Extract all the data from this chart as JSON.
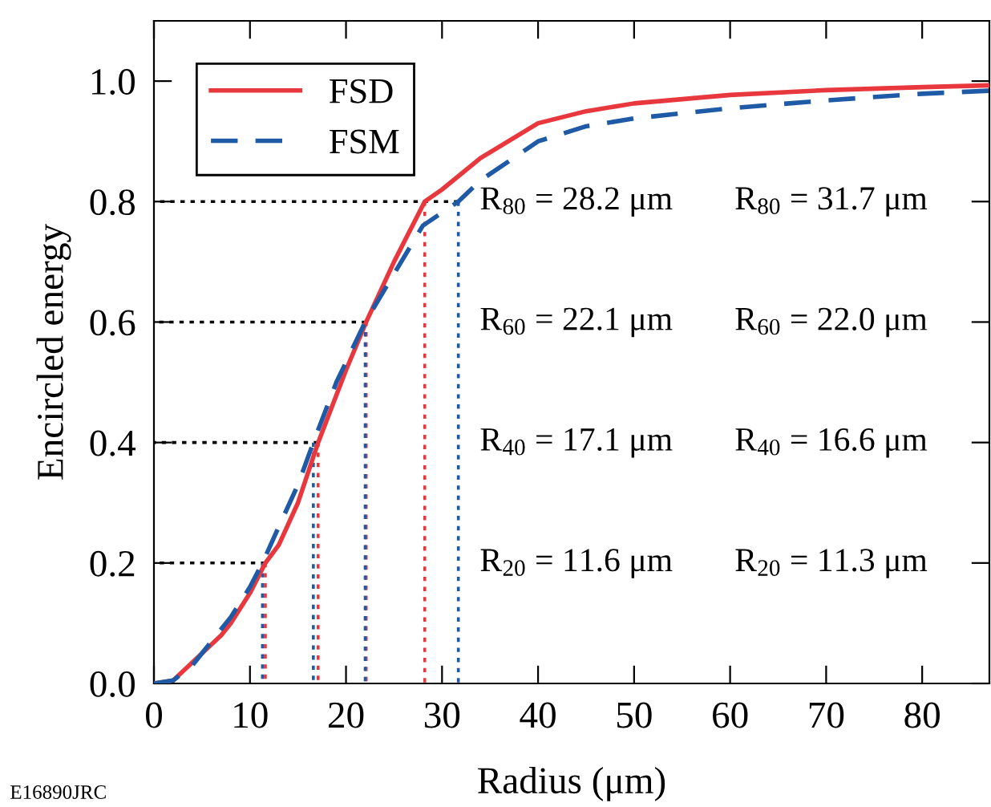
{
  "chart_data": {
    "type": "line",
    "xlabel": "Radius (μm)",
    "ylabel": "Encircled energy",
    "xlim": [
      0,
      87
    ],
    "ylim": [
      0,
      1.1
    ],
    "xticks": [
      0,
      10,
      20,
      30,
      40,
      50,
      60,
      70,
      80
    ],
    "yticks": [
      {
        "value": 0,
        "label": "0.0"
      },
      {
        "value": 0.2,
        "label": "0.2"
      },
      {
        "value": 0.4,
        "label": "0.4"
      },
      {
        "value": 0.6,
        "label": "0.6"
      },
      {
        "value": 0.8,
        "label": "0.8"
      },
      {
        "value": 1.0,
        "label": "1.0"
      }
    ],
    "grid": false,
    "legend": "top left",
    "series": [
      {
        "name": "FSD",
        "color": "#e8383d",
        "line_style": "solid",
        "x": [
          0,
          2,
          3,
          5,
          7,
          8,
          10,
          11.6,
          13,
          15,
          17.1,
          20,
          22.1,
          25,
          28.2,
          30,
          34,
          40,
          45,
          50,
          60,
          70,
          80,
          87
        ],
        "values": [
          0,
          0.005,
          0.02,
          0.05,
          0.08,
          0.1,
          0.15,
          0.2,
          0.23,
          0.3,
          0.4,
          0.52,
          0.6,
          0.7,
          0.8,
          0.82,
          0.872,
          0.93,
          0.95,
          0.963,
          0.977,
          0.985,
          0.99,
          0.993
        ]
      },
      {
        "name": "FSM",
        "color": "#1f5aa6",
        "line_style": "dashed",
        "x": [
          0,
          2,
          4,
          6,
          8,
          10,
          11.3,
          13,
          15,
          16.6,
          19,
          22,
          25,
          28,
          31.7,
          34,
          40,
          45,
          50,
          60,
          70,
          80,
          87
        ],
        "values": [
          0,
          0.005,
          0.03,
          0.07,
          0.11,
          0.16,
          0.2,
          0.26,
          0.33,
          0.4,
          0.5,
          0.6,
          0.68,
          0.76,
          0.8,
          0.835,
          0.9,
          0.925,
          0.938,
          0.955,
          0.968,
          0.979,
          0.984
        ]
      },
      {
        "color": "#000000",
        "line_style": "dotted",
        "x": [
          31.7,
          0
        ],
        "values": [
          0.8,
          0.8
        ]
      },
      {
        "color": "#000000",
        "line_style": "dotted",
        "x": [
          22.1,
          0
        ],
        "values": [
          0.6,
          0.6
        ]
      },
      {
        "color": "#000000",
        "line_style": "dotted",
        "x": [
          17.1,
          0
        ],
        "values": [
          0.4,
          0.4
        ]
      },
      {
        "color": "#000000",
        "line_style": "dotted",
        "x": [
          11.6,
          0
        ],
        "values": [
          0.2,
          0.2
        ]
      },
      {
        "color": "#e8383d",
        "line_style": "dotted",
        "x": [
          28.2,
          28.2
        ],
        "values": [
          0.8,
          0
        ]
      },
      {
        "color": "#e8383d",
        "line_style": "dotted",
        "x": [
          22.1,
          22.1
        ],
        "values": [
          0.6,
          0
        ]
      },
      {
        "color": "#e8383d",
        "line_style": "dotted",
        "x": [
          17.1,
          17.1
        ],
        "values": [
          0.4,
          0
        ]
      },
      {
        "color": "#e8383d",
        "line_style": "dotted",
        "x": [
          11.6,
          11.6
        ],
        "values": [
          0.2,
          0
        ]
      },
      {
        "color": "#1f5aa6",
        "line_style": "dotted",
        "x": [
          31.7,
          31.7
        ],
        "values": [
          0.8,
          0
        ]
      },
      {
        "color": "#1f5aa6",
        "line_style": "dotted",
        "x": [
          22.0,
          22.0
        ],
        "values": [
          0.6,
          0
        ]
      },
      {
        "color": "#1f5aa6",
        "line_style": "dotted",
        "x": [
          16.6,
          16.6
        ],
        "values": [
          0.4,
          0
        ]
      },
      {
        "color": "#1f5aa6",
        "line_style": "dotted",
        "x": [
          11.3,
          11.3
        ],
        "values": [
          0.2,
          0
        ]
      }
    ],
    "annotations": [
      "R$_{80}$ = 28.2 μm",
      "R$_{80}$ = 31.7 μm",
      "R$_{60}$ = 22.1 μm",
      "R$_{60}$ = 22.0 μm",
      "R$_{40}$ = 17.1 μm",
      "R$_{40}$ = 16.6 μm",
      "R$_{20}$ = 11.6 μm",
      "R$_{20}$ = 11.3 μm",
      "E16890JRC"
    ]
  }
}
